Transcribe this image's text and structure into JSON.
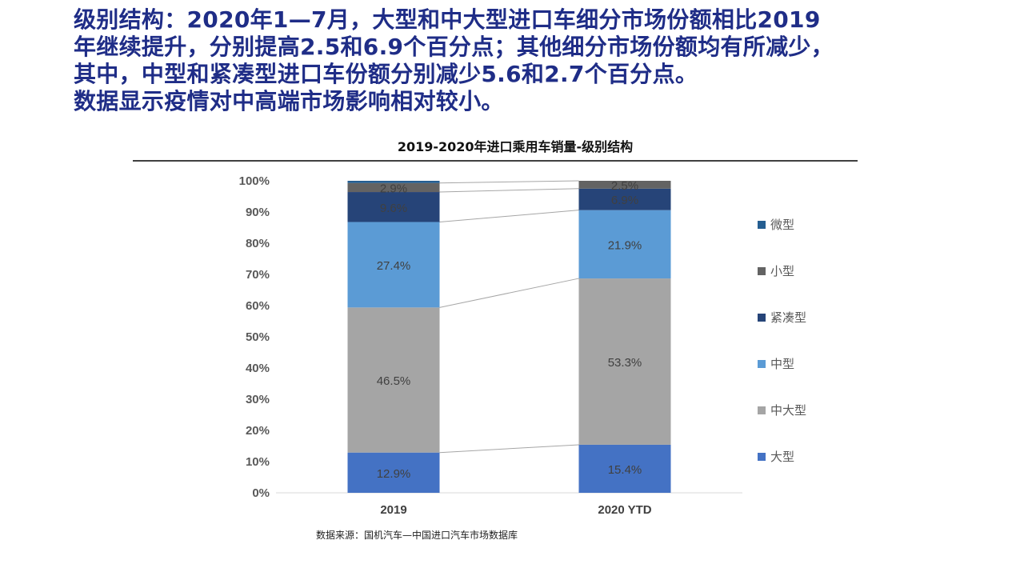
{
  "headline": {
    "lines": [
      "级别结构：2020年1—7月，大型和中大型进口车细分市场份额相比2019",
      "年继续提升，分别提高2.5和6.9个百分点；其他细分市场份额均有所减少，",
      "其中，中型和紧凑型进口车份额分别减少5.6和2.7个百分点。",
      "数据显示疫情对中高端市场影响相对较小。"
    ]
  },
  "source": "数据来源：国机汽车—中国进口汽车市场数据库",
  "chart_data": {
    "type": "bar",
    "stacked": true,
    "percent": true,
    "title": "2019-2020年进口乘用车销量-级别结构",
    "xlabel": "",
    "ylabel": "",
    "ylim": [
      0,
      100
    ],
    "yticks": [
      "0%",
      "10%",
      "20%",
      "30%",
      "40%",
      "50%",
      "60%",
      "70%",
      "80%",
      "90%",
      "100%"
    ],
    "categories": [
      "2019",
      "2020 YTD"
    ],
    "series_lines": true,
    "legend_position": "right",
    "grid": false,
    "series": [
      {
        "name": "大型",
        "color": "#4472c4",
        "values": [
          12.9,
          15.4
        ],
        "labels": [
          "12.9%",
          "15.4%"
        ]
      },
      {
        "name": "中大型",
        "color": "#a5a5a5",
        "values": [
          46.5,
          53.3
        ],
        "labels": [
          "46.5%",
          "53.3%"
        ]
      },
      {
        "name": "中型",
        "color": "#5b9bd5",
        "values": [
          27.4,
          21.9
        ],
        "labels": [
          "27.4%",
          "21.9%"
        ]
      },
      {
        "name": "紧凑型",
        "color": "#264478",
        "values": [
          9.6,
          6.9
        ],
        "labels": [
          "9.6%",
          "6.9%"
        ]
      },
      {
        "name": "小型",
        "color": "#636363",
        "values": [
          2.9,
          2.5
        ],
        "labels": [
          "2.9%",
          "2.5%"
        ]
      },
      {
        "name": "微型",
        "color": "#255e91",
        "values": [
          0.7,
          0.0
        ],
        "labels": [
          "",
          ""
        ]
      }
    ]
  }
}
